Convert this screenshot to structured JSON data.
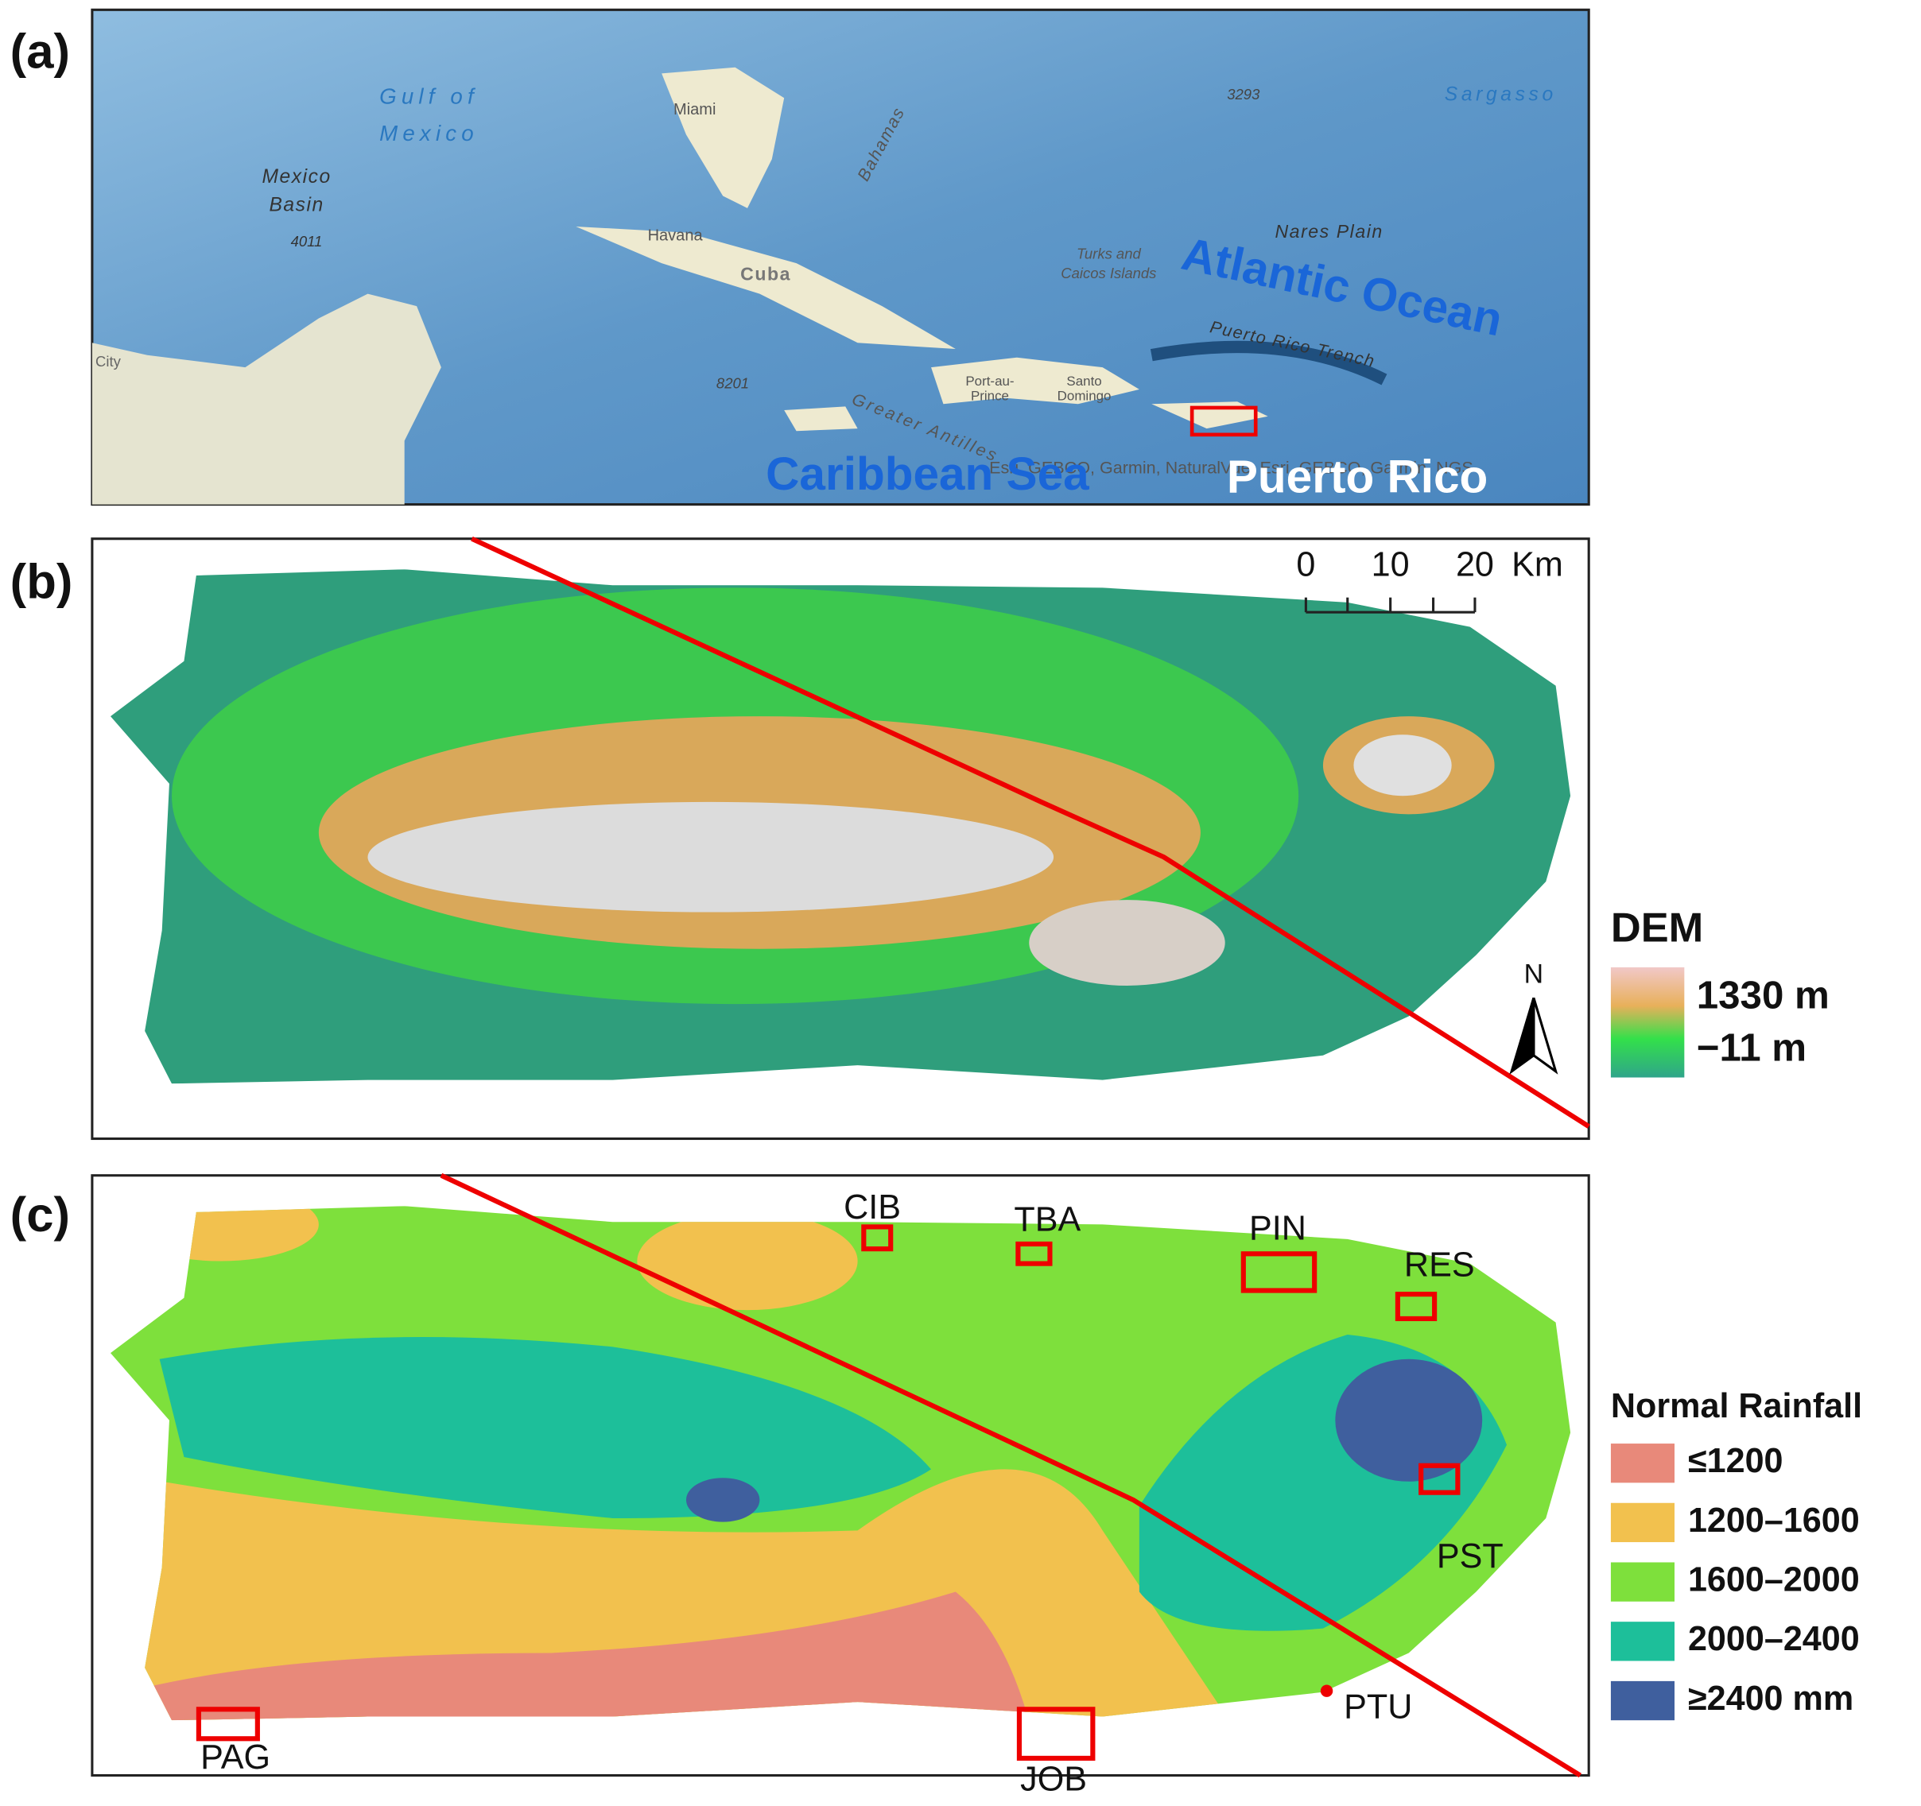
{
  "panel_a": {
    "label": "(a)",
    "place_names": [
      "Gulf of",
      "Mexico",
      "Mexico",
      "Basin",
      "4011",
      "Miami",
      "Havana",
      "Cuba",
      "Bahamas",
      "Turks and",
      "Caicos Islands",
      "Nares Plain",
      "Atlantic Ocean",
      "Puerto Rico Trench",
      "Port-au-",
      "Prince",
      "Santo",
      "Domingo",
      "8201",
      "Greater Antilles",
      "3293",
      "Sargasso",
      "City",
      "Esri, GEBCO, Garmin, NaturalVue, Esri, GEBCO, Garmin, NGS",
      "Caribbean Sea",
      "Puerto Rico"
    ]
  },
  "panel_b": {
    "label": "(b)",
    "scale_bar": {
      "ticks": [
        "0",
        "10",
        "20"
      ],
      "unit": "Km"
    },
    "north": "N",
    "legend": {
      "title": "DEM",
      "max": "1330 m",
      "min": "−11 m"
    }
  },
  "panel_c": {
    "label": "(c)",
    "stations": [
      "CIB",
      "TBA",
      "PIN",
      "RES",
      "PST",
      "PTU",
      "PAG",
      "JOB"
    ],
    "legend": {
      "title": "Normal Rainfall",
      "items": [
        {
          "label": "≤1200",
          "color": "#e8897a"
        },
        {
          "label": "1200–1600",
          "color": "#f2c14e"
        },
        {
          "label": "1600–2000",
          "color": "#7ee03c"
        },
        {
          "label": "2000–2400",
          "color": "#1dbf9a"
        },
        {
          "label": "≥2400 mm",
          "color": "#3f5f9e"
        }
      ]
    }
  }
}
